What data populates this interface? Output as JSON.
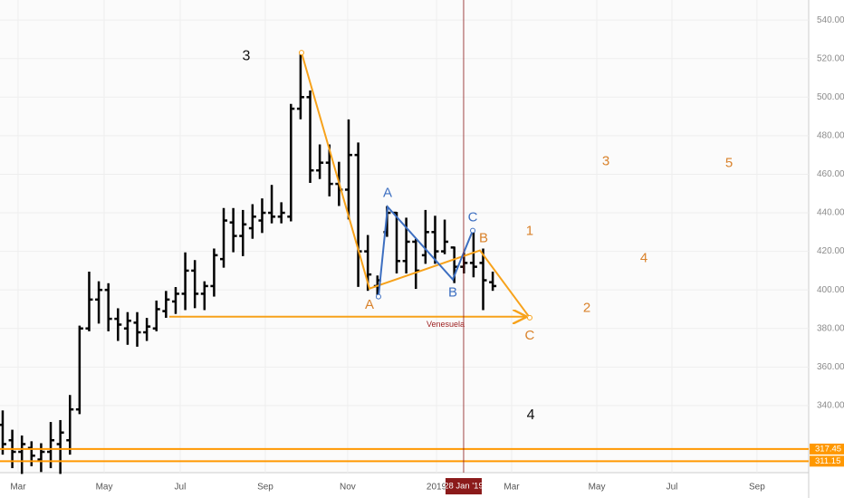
{
  "chart_data": {
    "type": "ohlc",
    "bar_color": "#000000",
    "open": [
      330,
      322,
      316,
      318,
      312,
      316,
      320,
      322,
      338,
      380,
      395,
      400,
      385,
      380,
      383,
      378,
      380,
      389,
      394,
      398,
      410,
      398,
      402,
      416,
      435,
      428,
      432,
      436,
      440,
      438,
      438,
      494,
      500,
      462,
      466,
      455,
      452,
      470,
      420,
      402,
      430,
      440,
      415,
      425,
      418,
      430,
      420,
      422,
      412,
      414,
      414,
      404
    ],
    "high": [
      337,
      327,
      324,
      321,
      320,
      331,
      332,
      345,
      381,
      409,
      404,
      403,
      390,
      388,
      388,
      385,
      394,
      399,
      401,
      419,
      415,
      404,
      421,
      442,
      442,
      441,
      444,
      447,
      454,
      445,
      496,
      522,
      503,
      475,
      475,
      466,
      488,
      476,
      428,
      407,
      443,
      440,
      437,
      426,
      441,
      438,
      436,
      422,
      419,
      430,
      421,
      409
    ],
    "low": [
      315,
      308,
      305,
      309,
      306,
      308,
      305,
      315,
      336,
      379,
      383,
      379,
      374,
      372,
      371,
      374,
      379,
      386,
      388,
      390,
      391,
      390,
      397,
      412,
      420,
      418,
      427,
      430,
      435,
      435,
      436,
      489,
      456,
      458,
      449,
      444,
      437,
      402,
      400,
      396,
      428,
      409,
      409,
      401,
      414,
      414,
      419,
      404,
      409,
      407,
      390,
      400
    ],
    "close": [
      320,
      316,
      320,
      314,
      316,
      322,
      326,
      338,
      380,
      395,
      400,
      385,
      382,
      384,
      378,
      381,
      390,
      395,
      398,
      410,
      398,
      402,
      418,
      436,
      428,
      434,
      438,
      440,
      438,
      440,
      494,
      500,
      462,
      466,
      455,
      452,
      470,
      420,
      408,
      405,
      440,
      415,
      425,
      410,
      430,
      420,
      425,
      412,
      414,
      412,
      405,
      402
    ],
    "xlim": [
      -0.28,
      83.88
    ],
    "xticks": [
      {
        "value": 1.6,
        "label": "Mar"
      },
      {
        "value": 10.56,
        "label": "May"
      },
      {
        "value": 18.47,
        "label": "Jul"
      },
      {
        "value": 27.33,
        "label": "Sep"
      },
      {
        "value": 35.9,
        "label": "Nov"
      },
      {
        "value": 45.15,
        "label": "2019"
      },
      {
        "value": 52.97,
        "label": "Mar"
      },
      {
        "value": 61.83,
        "label": "May"
      },
      {
        "value": 69.65,
        "label": "Jul"
      },
      {
        "value": 78.5,
        "label": "Sep"
      }
    ],
    "ylim": [
      305.2,
      550.4
    ],
    "yticks": [
      {
        "value": 340,
        "label": "340.00"
      },
      {
        "value": 360,
        "label": "360.00"
      },
      {
        "value": 380,
        "label": "380.00"
      },
      {
        "value": 400,
        "label": "400.00"
      },
      {
        "value": 420,
        "label": "420.00"
      },
      {
        "value": 440,
        "label": "440.00"
      },
      {
        "value": 460,
        "label": "460.00"
      },
      {
        "value": 480,
        "label": "480.00"
      },
      {
        "value": 500,
        "label": "500.00"
      },
      {
        "value": 520,
        "label": "520.00"
      },
      {
        "value": 540,
        "label": "540.00"
      }
    ],
    "grid": true,
    "levels": [
      {
        "value": 317.45,
        "label": "317.45",
        "color": "#ff9800"
      },
      {
        "value": 311.15,
        "label": "311.15",
        "color": "#ff9800"
      }
    ],
    "crosshair": {
      "x": 47.97,
      "label": "28 Jan '19",
      "color": "#8b1a1a"
    },
    "drawings": [
      {
        "color": "#f7a21b",
        "x": [
          31.1,
          38.17,
          49.67,
          54.85
        ],
        "y": [
          523.1,
          400.7,
          420.5,
          385.6
        ]
      },
      {
        "color": "#f7a21b",
        "x": [
          17.34,
          54.38
        ],
        "y": [
          386.1,
          386.1
        ],
        "arrow": true
      },
      {
        "color": "#3d6fc1",
        "x": [
          39.11,
          40.06,
          46.84,
          48.92
        ],
        "y": [
          396.5,
          443.1,
          405.4,
          430.8
        ]
      }
    ],
    "annotations": [
      {
        "text": "3",
        "x": 25.35,
        "y": 521.2,
        "color": "#111111",
        "size": 16
      },
      {
        "text": "A",
        "x": 38.17,
        "y": 392.2,
        "color": "#d9822b",
        "size": 15
      },
      {
        "text": "A",
        "x": 40.06,
        "y": 450.1,
        "color": "#3d6fc1",
        "size": 15
      },
      {
        "text": "B",
        "x": 46.84,
        "y": 398.4,
        "color": "#3d6fc1",
        "size": 15
      },
      {
        "text": "C",
        "x": 48.92,
        "y": 437.4,
        "color": "#3d6fc1",
        "size": 15
      },
      {
        "text": "B",
        "x": 50.05,
        "y": 426.6,
        "color": "#d9822b",
        "size": 15
      },
      {
        "text": "C",
        "x": 54.85,
        "y": 376.2,
        "color": "#d9822b",
        "size": 15
      },
      {
        "text": "1",
        "x": 54.85,
        "y": 430.4,
        "color": "#d9822b",
        "size": 15
      },
      {
        "text": "2",
        "x": 60.79,
        "y": 390.4,
        "color": "#d9822b",
        "size": 15
      },
      {
        "text": "3",
        "x": 62.77,
        "y": 466.6,
        "color": "#d9822b",
        "size": 15
      },
      {
        "text": "4",
        "x": 66.73,
        "y": 416.2,
        "color": "#d9822b",
        "size": 15
      },
      {
        "text": "5",
        "x": 75.59,
        "y": 465.6,
        "color": "#d9822b",
        "size": 15
      },
      {
        "text": "4",
        "x": 54.95,
        "y": 334.8,
        "color": "#111111",
        "size": 16
      },
      {
        "text": "Venesuela",
        "x": 46.09,
        "y": 381.9,
        "color": "#9b1c1c",
        "size": 9
      }
    ]
  }
}
